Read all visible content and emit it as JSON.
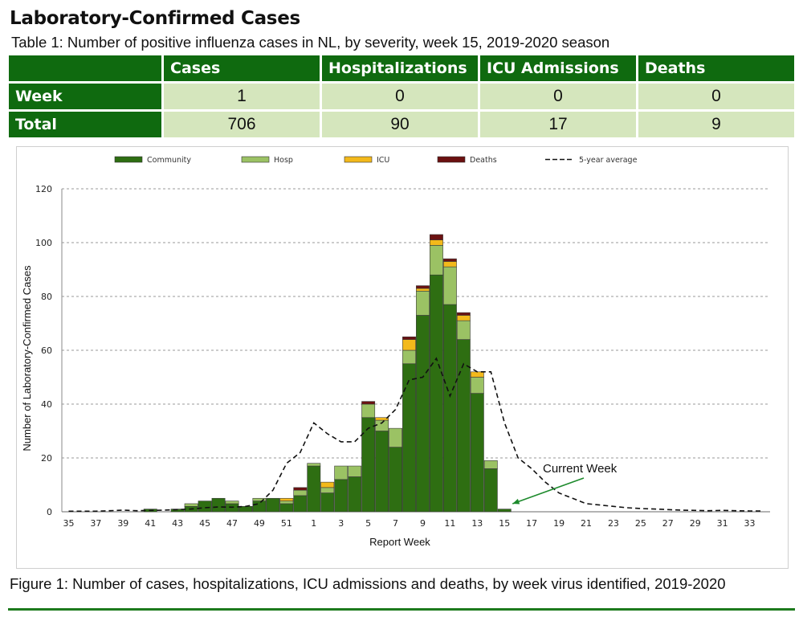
{
  "heading": "Laboratory-Confirmed Cases",
  "table_caption": "Table 1: Number of positive influenza cases in NL, by severity, week 15, 2019-2020 season",
  "table": {
    "columns": [
      "Cases",
      "Hospitalizations",
      "ICU Admissions",
      "Deaths"
    ],
    "rows": [
      {
        "label": "Week",
        "values": [
          "1",
          "0",
          "0",
          "0"
        ]
      },
      {
        "label": "Total",
        "values": [
          "706",
          "90",
          "17",
          "9"
        ]
      }
    ]
  },
  "figure_caption": "Figure 1: Number of cases, hospitalizations, ICU admissions and deaths, by week virus identified, 2019-2020",
  "colors": {
    "header_green": "#0f6a0f",
    "cell_green": "#d5e6bd",
    "community": "#2e6e12",
    "hosp": "#9bc264",
    "icu": "#f3b91b",
    "deaths": "#6b1111"
  },
  "chart_data": {
    "type": "bar",
    "stacked": true,
    "xlabel": "Report Week",
    "ylabel": "Number of Laboratory-Confirmed Cases",
    "ylim": [
      0,
      120
    ],
    "yticks": [
      0,
      20,
      40,
      60,
      80,
      100,
      120
    ],
    "grid": true,
    "legend_position": "top",
    "categories": [
      "35",
      "36",
      "37",
      "38",
      "39",
      "40",
      "41",
      "42",
      "43",
      "44",
      "45",
      "46",
      "47",
      "48",
      "49",
      "50",
      "51",
      "52",
      "1",
      "2",
      "3",
      "4",
      "5",
      "6",
      "7",
      "8",
      "9",
      "10",
      "11",
      "12",
      "13",
      "14",
      "15",
      "16",
      "17",
      "18",
      "19",
      "20",
      "21",
      "22",
      "23",
      "24",
      "25",
      "26",
      "27",
      "28",
      "29",
      "30",
      "31",
      "32",
      "33",
      "34"
    ],
    "tick_labels": [
      "35",
      "37",
      "39",
      "41",
      "43",
      "45",
      "47",
      "49",
      "51",
      "1",
      "3",
      "5",
      "7",
      "9",
      "11",
      "13",
      "15",
      "17",
      "19",
      "21",
      "23",
      "25",
      "27",
      "29",
      "31",
      "33"
    ],
    "series": [
      {
        "name": "Community",
        "values": [
          0,
          0,
          0,
          0,
          0,
          0,
          1,
          0,
          1,
          2,
          4,
          5,
          3,
          2,
          4,
          5,
          3,
          6,
          17,
          7,
          12,
          13,
          35,
          30,
          24,
          55,
          73,
          88,
          77,
          64,
          44,
          16,
          1,
          0,
          0,
          0,
          0,
          0,
          0,
          0,
          0,
          0,
          0,
          0,
          0,
          0,
          0,
          0,
          0,
          0,
          0,
          0
        ]
      },
      {
        "name": "Hosp",
        "values": [
          0,
          0,
          0,
          0,
          0,
          0,
          0,
          0,
          0,
          1,
          0,
          0,
          1,
          0,
          1,
          0,
          1,
          2,
          1,
          2,
          5,
          4,
          5,
          4,
          7,
          5,
          9,
          11,
          14,
          7,
          6,
          3,
          0,
          0,
          0,
          0,
          0,
          0,
          0,
          0,
          0,
          0,
          0,
          0,
          0,
          0,
          0,
          0,
          0,
          0,
          0,
          0
        ]
      },
      {
        "name": "ICU",
        "values": [
          0,
          0,
          0,
          0,
          0,
          0,
          0,
          0,
          0,
          0,
          0,
          0,
          0,
          0,
          0,
          0,
          1,
          0,
          0,
          2,
          0,
          0,
          0,
          1,
          0,
          4,
          1,
          2,
          2,
          2,
          2,
          0,
          0,
          0,
          0,
          0,
          0,
          0,
          0,
          0,
          0,
          0,
          0,
          0,
          0,
          0,
          0,
          0,
          0,
          0,
          0,
          0
        ]
      },
      {
        "name": "Deaths",
        "values": [
          0,
          0,
          0,
          0,
          0,
          0,
          0,
          0,
          0,
          0,
          0,
          0,
          0,
          0,
          0,
          0,
          0,
          1,
          0,
          0,
          0,
          0,
          1,
          0,
          0,
          1,
          1,
          2,
          1,
          1,
          0,
          0,
          0,
          0,
          0,
          0,
          0,
          0,
          0,
          0,
          0,
          0,
          0,
          0,
          0,
          0,
          0,
          0,
          0,
          0,
          0,
          0
        ]
      },
      {
        "name": "5-year average",
        "type": "line",
        "style": "dashed",
        "values": [
          0.2,
          0.2,
          0.2,
          0.4,
          0.6,
          0.4,
          0.5,
          0.6,
          0.8,
          1.0,
          1.5,
          1.8,
          1.7,
          2.0,
          3.0,
          8.0,
          18.0,
          22.0,
          33.0,
          29.0,
          26.0,
          26.0,
          31.0,
          33.0,
          38.0,
          49.0,
          50.0,
          57.0,
          43.0,
          55.0,
          52.0,
          52.0,
          33.0,
          20.0,
          16.0,
          11.0,
          7.0,
          5.0,
          3.0,
          2.5,
          2.0,
          1.5,
          1.2,
          1.0,
          0.8,
          0.6,
          0.5,
          0.4,
          0.5,
          0.4,
          0.3,
          0.3
        ]
      }
    ],
    "annotation": {
      "text": "Current Week",
      "target_category": "15"
    }
  }
}
